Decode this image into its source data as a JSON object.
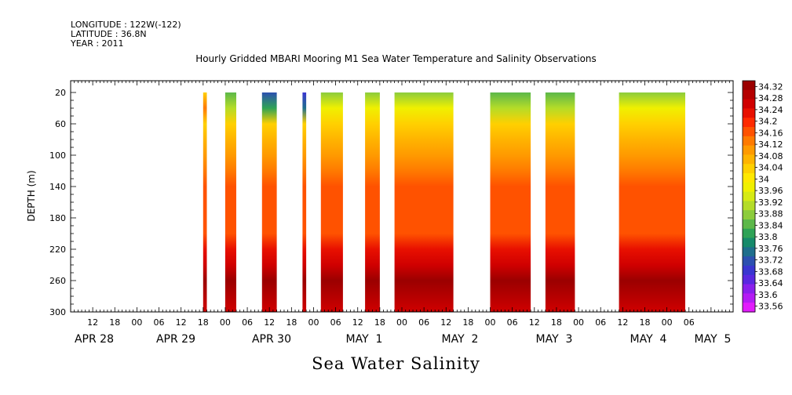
{
  "header": {
    "longitude": "LONGITUDE : 122W(-122)",
    "latitude": "LATITUDE : 36.8N",
    "year": "YEAR : 2011"
  },
  "chart_data": {
    "type": "heatmap",
    "title": "Hourly Gridded MBARI Mooring M1 Sea Water Temperature and Salinity Observations",
    "caption": "Sea Water Salinity",
    "ylabel": "DEPTH (m)",
    "y_ticks": [
      20,
      60,
      100,
      140,
      180,
      220,
      260,
      300
    ],
    "ylim": [
      300,
      5
    ],
    "x_hours": [
      "12",
      "18",
      "00",
      "06",
      "12",
      "18",
      "00",
      "06",
      "12",
      "18",
      "00",
      "06",
      "12",
      "18",
      "00",
      "06",
      "12",
      "18",
      "00",
      "06",
      "12",
      "18",
      "00",
      "06",
      "12",
      "18",
      "00",
      "06"
    ],
    "x_dates": [
      "APR 28",
      "APR 29",
      "APR 30",
      "MAY  1",
      "MAY  2",
      "MAY  3",
      "MAY  4",
      "MAY  5"
    ],
    "colorbar_levels": [
      "34.32",
      "34.28",
      "34.24",
      "34.2",
      "34.16",
      "34.12",
      "34.08",
      "34.04",
      "34",
      "33.96",
      "33.92",
      "33.88",
      "33.84",
      "33.8",
      "33.76",
      "33.72",
      "33.68",
      "33.64",
      "33.6",
      "33.56"
    ],
    "colorbar_colors": [
      "#9b0000",
      "#b50000",
      "#d00000",
      "#e81000",
      "#ff2a00",
      "#ff5200",
      "#ff7a00",
      "#ff9a00",
      "#ffb400",
      "#ffd000",
      "#ffe800",
      "#f0f000",
      "#d6ea14",
      "#b4dc28",
      "#8ccc3c",
      "#5cb84a",
      "#2ea256",
      "#168a6a",
      "#1e6e8c",
      "#2c50b0",
      "#3a36d0",
      "#5a28e0",
      "#8a20ec",
      "#b41cf4",
      "#e21cfc"
    ],
    "data_blocks": [
      {
        "start_h": 42,
        "end_h": 43,
        "surface": 34.04
      },
      {
        "start_h": 48,
        "end_h": 51,
        "surface": 33.84
      },
      {
        "start_h": 58,
        "end_h": 62,
        "surface": 33.72
      },
      {
        "start_h": 69,
        "end_h": 70,
        "surface": 33.68
      },
      {
        "start_h": 74,
        "end_h": 80,
        "surface": 33.88
      },
      {
        "start_h": 86,
        "end_h": 90,
        "surface": 33.88
      },
      {
        "start_h": 94,
        "end_h": 110,
        "surface": 33.88
      },
      {
        "start_h": 120,
        "end_h": 131,
        "surface": 33.84
      },
      {
        "start_h": 135,
        "end_h": 143,
        "surface": 33.84
      },
      {
        "start_h": 155,
        "end_h": 173,
        "surface": 33.88
      }
    ]
  }
}
